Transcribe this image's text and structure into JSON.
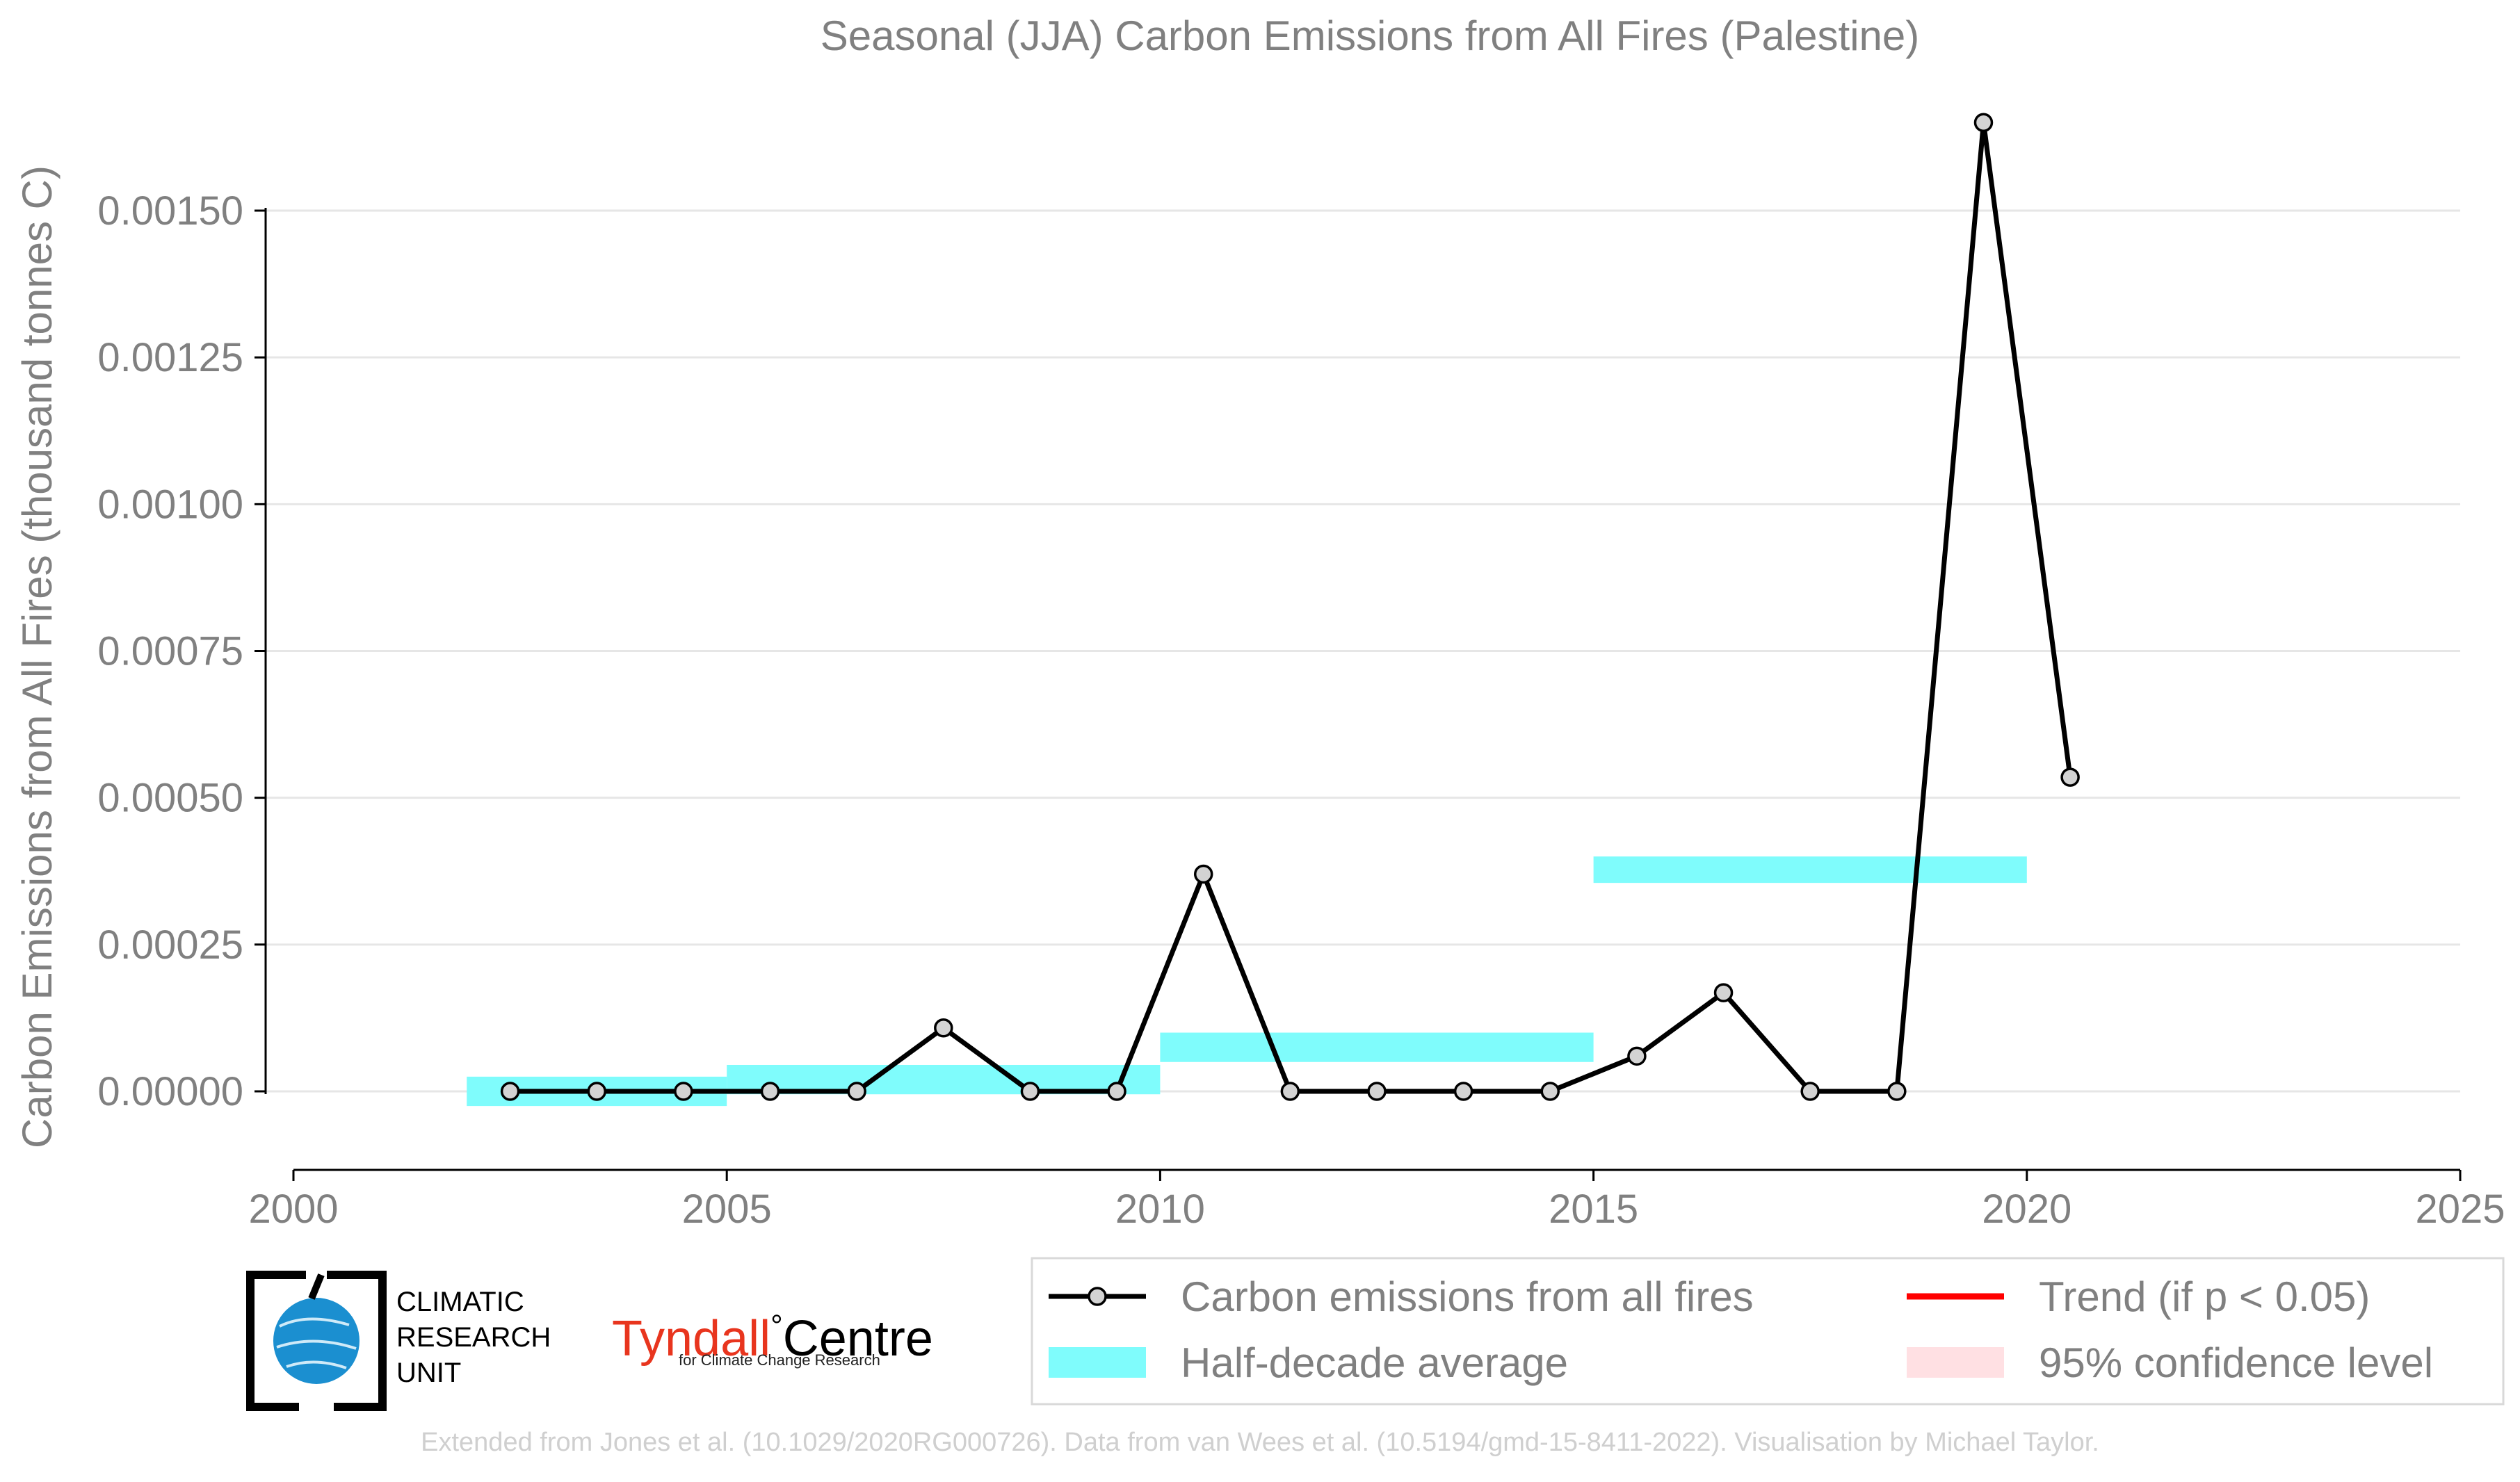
{
  "chart_data": {
    "type": "line",
    "title": "Seasonal (JJA) Carbon Emissions from All Fires (Palestine)",
    "xlabel": "",
    "ylabel": "Carbon Emissions from All Fires (thousand tonnes C)",
    "xlim": [
      2000,
      2025
    ],
    "ylim": [
      -0.00012,
      0.0017
    ],
    "x_ticks": [
      2000,
      2005,
      2010,
      2015,
      2020,
      2025
    ],
    "x_tick_labels": [
      "2000",
      "2005",
      "2010",
      "2015",
      "2020",
      "2025"
    ],
    "y_ticks": [
      0,
      0.00025,
      0.0005,
      0.00075,
      0.001,
      0.00125,
      0.0015
    ],
    "y_tick_labels": [
      "0.00000",
      "0.00025",
      "0.00050",
      "0.00075",
      "0.00100",
      "0.00125",
      "0.00150"
    ],
    "grid": "horizontal",
    "legend_position": "bottom-right",
    "series": [
      {
        "name": "Carbon emissions from all fires",
        "color": "#000000",
        "marker_color": "#d3d3d3",
        "x": [
          2002.5,
          2003.5,
          2004.5,
          2005.5,
          2006.5,
          2007.5,
          2008.5,
          2009.5,
          2010.5,
          2011.5,
          2012.5,
          2013.5,
          2014.5,
          2015.5,
          2016.5,
          2017.5,
          2018.5,
          2019.5,
          2020.5
        ],
        "y": [
          0,
          0,
          0,
          0,
          0,
          0.000108,
          0,
          0,
          0.00037,
          0,
          0,
          0,
          0,
          6e-05,
          0.000168,
          0,
          0,
          0.00165,
          0.000535
        ]
      }
    ],
    "half_decade_average": {
      "name": "Half-decade average",
      "color": "#7ffcfc",
      "segments": [
        {
          "x0": 2002,
          "x1": 2005,
          "y0": -2.5e-05,
          "y1": 2.5e-05
        },
        {
          "x0": 2005,
          "x1": 2010,
          "y0": -5e-06,
          "y1": 4.5e-05
        },
        {
          "x0": 2010,
          "x1": 2015,
          "y0": 5e-05,
          "y1": 0.0001
        },
        {
          "x0": 2015,
          "x1": 2020,
          "y0": 0.000355,
          "y1": 0.0004
        }
      ]
    },
    "legend": [
      {
        "label": "Carbon emissions from all fires",
        "kind": "line-marker",
        "color": "#000000"
      },
      {
        "label": "Trend (if p < 0.05)",
        "kind": "line",
        "color": "#ff0000"
      },
      {
        "label": "Half-decade average",
        "kind": "patch",
        "color": "#7ffcfc"
      },
      {
        "label": "95% confidence level",
        "kind": "patch",
        "color": "#ffe0e3"
      }
    ]
  },
  "logos": {
    "cru_lines": [
      "CLIMATIC",
      "RESEARCH",
      "UNIT"
    ],
    "tyndall_part1": "Tyndall",
    "tyndall_degree": "°",
    "tyndall_part2": "Centre",
    "tyndall_sub": "for Climate Change Research"
  },
  "credit": "Extended from Jones et al. (10.1029/2020RG000726). Data from van Wees et al. (10.5194/gmd-15-8411-2022). Visualisation by Michael Taylor."
}
